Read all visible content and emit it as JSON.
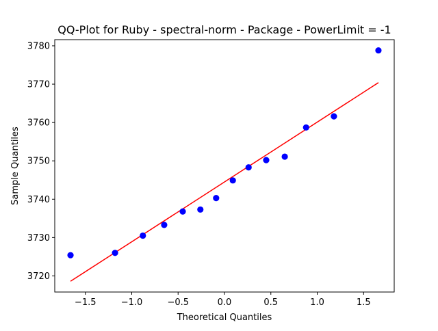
{
  "chart_data": {
    "type": "scatter",
    "title": "QQ-Plot for Ruby - spectral-norm - Package - PowerLimit = -1",
    "xlabel": "Theoretical Quantiles",
    "ylabel": "Sample Quantiles",
    "xlim": [
      -1.83,
      1.83
    ],
    "ylim": [
      3715.8,
      3781.6
    ],
    "xticks": [
      -1.5,
      -1.0,
      -0.5,
      0.0,
      0.5,
      1.0,
      1.5
    ],
    "xtick_labels": [
      "−1.5",
      "−1.0",
      "−0.5",
      "0.0",
      "0.5",
      "1.0",
      "1.5"
    ],
    "yticks": [
      3720,
      3730,
      3740,
      3750,
      3760,
      3770,
      3780
    ],
    "ytick_labels": [
      "3720",
      "3730",
      "3740",
      "3750",
      "3760",
      "3770",
      "3780"
    ],
    "grid": false,
    "legend": "none",
    "colors": {
      "points": "#0000ff",
      "fit_line": "#ff0000",
      "axes": "#000000"
    },
    "points": {
      "x": [
        -1.66,
        -1.18,
        -0.88,
        -0.65,
        -0.45,
        -0.26,
        -0.09,
        0.09,
        0.26,
        0.45,
        0.65,
        0.88,
        1.18,
        1.66
      ],
      "y": [
        3725.4,
        3726.0,
        3730.5,
        3733.3,
        3736.8,
        3737.3,
        3740.3,
        3744.9,
        3748.3,
        3750.2,
        3751.1,
        3758.7,
        3761.6,
        3778.8
      ]
    },
    "fit_line": {
      "x": [
        -1.66,
        1.66
      ],
      "y": [
        3718.6,
        3770.4
      ]
    }
  }
}
